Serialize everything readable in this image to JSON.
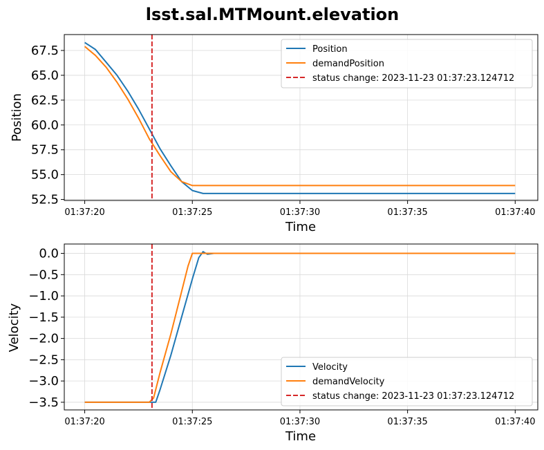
{
  "title": "lsst.sal.MTMount.elevation",
  "colors": {
    "series_blue": "#1f77b4",
    "series_orange": "#ff7f0e",
    "marker_red": "#d62728",
    "grid": "#d9d9d9"
  },
  "chart_data": [
    {
      "type": "line",
      "xlabel": "Time",
      "ylabel": "Position",
      "xlim": [
        "01:37:19.05",
        "01:37:41.05"
      ],
      "ylim": [
        52.4,
        69.1
      ],
      "x_ticks": [
        "01:37:20",
        "01:37:25",
        "01:37:30",
        "01:37:35",
        "01:37:40"
      ],
      "y_ticks": [
        "52.5",
        "55.0",
        "57.5",
        "60.0",
        "62.5",
        "65.0",
        "67.5"
      ],
      "grid": true,
      "legend_position": "top-right",
      "series": [
        {
          "name": "Position",
          "color": "#1f77b4",
          "points": [
            [
              "01:37:20",
              68.3
            ],
            [
              "01:37:20.5",
              67.6
            ],
            [
              "01:37:21",
              66.3
            ],
            [
              "01:37:21.5",
              65.0
            ],
            [
              "01:37:22",
              63.4
            ],
            [
              "01:37:22.5",
              61.6
            ],
            [
              "01:37:23",
              59.6
            ],
            [
              "01:37:23.5",
              57.6
            ],
            [
              "01:37:24",
              55.9
            ],
            [
              "01:37:24.5",
              54.3
            ],
            [
              "01:37:25",
              53.4
            ],
            [
              "01:37:25.5",
              53.1
            ],
            [
              "01:37:40",
              53.1
            ]
          ]
        },
        {
          "name": "demandPosition",
          "color": "#ff7f0e",
          "points": [
            [
              "01:37:20",
              67.9
            ],
            [
              "01:37:20.5",
              67.0
            ],
            [
              "01:37:21",
              65.8
            ],
            [
              "01:37:21.5",
              64.3
            ],
            [
              "01:37:22",
              62.6
            ],
            [
              "01:37:22.5",
              60.7
            ],
            [
              "01:37:23",
              58.6
            ],
            [
              "01:37:23.5",
              56.9
            ],
            [
              "01:37:24",
              55.3
            ],
            [
              "01:37:24.5",
              54.3
            ],
            [
              "01:37:25",
              53.9
            ],
            [
              "01:37:40",
              53.9
            ]
          ]
        },
        {
          "name": "status change: 2023-11-23 01:37:23.124712",
          "color": "#d62728",
          "style": "dashed",
          "x": "01:37:23.124712"
        }
      ]
    },
    {
      "type": "line",
      "xlabel": "Time",
      "ylabel": "Velocity",
      "xlim": [
        "01:37:19.05",
        "01:37:41.05"
      ],
      "ylim": [
        -3.68,
        0.22
      ],
      "x_ticks": [
        "01:37:20",
        "01:37:25",
        "01:37:30",
        "01:37:35",
        "01:37:40"
      ],
      "y_ticks": [
        "−3.5",
        "−3.0",
        "−2.5",
        "−2.0",
        "−1.5",
        "−1.0",
        "−0.5",
        "0.0"
      ],
      "grid": true,
      "legend_position": "bottom-right",
      "series": [
        {
          "name": "Velocity",
          "color": "#1f77b4",
          "points": [
            [
              "01:37:20",
              -3.5
            ],
            [
              "01:37:23",
              -3.5
            ],
            [
              "01:37:23.3",
              -3.5
            ],
            [
              "01:37:23.5",
              -3.2
            ],
            [
              "01:37:24",
              -2.4
            ],
            [
              "01:37:24.5",
              -1.5
            ],
            [
              "01:37:25",
              -0.6
            ],
            [
              "01:37:25.3",
              -0.1
            ],
            [
              "01:37:25.5",
              0.04
            ],
            [
              "01:37:25.7",
              -0.02
            ],
            [
              "01:37:26",
              0.0
            ],
            [
              "01:37:40",
              0.0
            ]
          ]
        },
        {
          "name": "demandVelocity",
          "color": "#ff7f0e",
          "points": [
            [
              "01:37:20",
              -3.5
            ],
            [
              "01:37:23",
              -3.5
            ],
            [
              "01:37:23.2",
              -3.4
            ],
            [
              "01:37:23.5",
              -2.8
            ],
            [
              "01:37:24",
              -1.9
            ],
            [
              "01:37:24.5",
              -0.9
            ],
            [
              "01:37:24.8",
              -0.3
            ],
            [
              "01:37:25",
              0.0
            ],
            [
              "01:37:40",
              0.0
            ]
          ]
        },
        {
          "name": "status change: 2023-11-23 01:37:23.124712",
          "color": "#d62728",
          "style": "dashed",
          "x": "01:37:23.124712"
        }
      ]
    }
  ]
}
